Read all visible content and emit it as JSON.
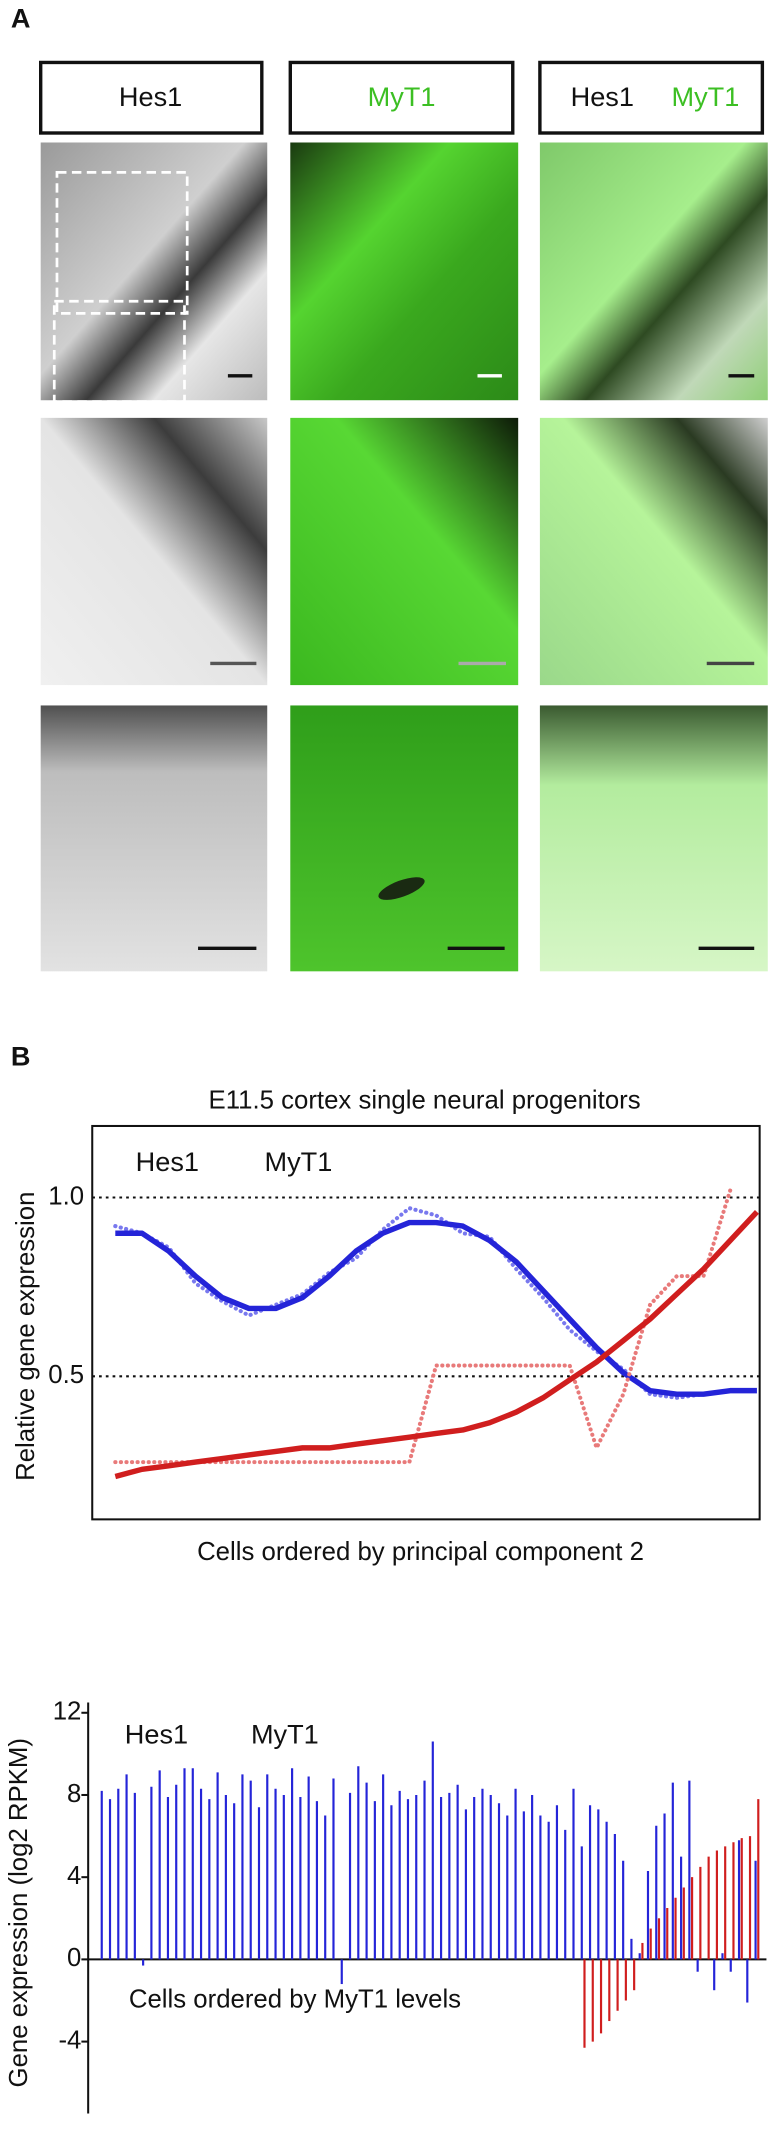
{
  "panel_a": {
    "label": "A",
    "headers": [
      {
        "parts": [
          "Hes1"
        ]
      },
      {
        "parts": [
          "MyT1"
        ]
      },
      {
        "parts": [
          "Hes1",
          "MyT1"
        ]
      }
    ]
  },
  "panel_b_label": "B",
  "chart_data": [
    {
      "type": "line",
      "title": "E11.5 cortex single neural progenitors",
      "y_label": "Relative gene expression",
      "x_label": "Cells ordered by principal component 2",
      "ylim": [
        0.1,
        1.2
      ],
      "yticks": [
        0.5,
        {
          "value": 1,
          "label": "1.0"
        }
      ],
      "grid": true,
      "series": [
        {
          "name": "Hes1",
          "color": "#2424d8",
          "raw_color": "#7878ee",
          "values": [
            0.92,
            0.9,
            0.86,
            0.76,
            0.71,
            0.67,
            0.7,
            0.73,
            0.79,
            0.83,
            0.91,
            0.97,
            0.95,
            0.9,
            0.89,
            0.8,
            0.72,
            0.63,
            0.57,
            0.52,
            0.45,
            0.44,
            0.45,
            0.46,
            0.46
          ],
          "fit": [
            0.9,
            0.9,
            0.85,
            0.78,
            0.72,
            0.69,
            0.69,
            0.72,
            0.78,
            0.85,
            0.9,
            0.93,
            0.93,
            0.92,
            0.88,
            0.82,
            0.74,
            0.66,
            0.58,
            0.51,
            0.46,
            0.45,
            0.45,
            0.46,
            0.46
          ]
        },
        {
          "name": "MyT1",
          "color": "#d01e1e",
          "raw_color": "#e87a7a",
          "values": [
            0.26,
            0.26,
            0.26,
            0.26,
            0.26,
            0.26,
            0.26,
            0.26,
            0.26,
            0.26,
            0.26,
            0.26,
            0.53,
            0.53,
            0.53,
            0.53,
            0.53,
            0.53,
            0.3,
            0.45,
            0.7,
            0.78,
            0.78,
            1.02,
            null
          ],
          "fit": [
            0.22,
            0.24,
            0.25,
            0.26,
            0.27,
            0.28,
            0.29,
            0.3,
            0.3,
            0.31,
            0.32,
            0.33,
            0.34,
            0.35,
            0.37,
            0.4,
            0.44,
            0.49,
            0.54,
            0.6,
            0.66,
            0.73,
            0.8,
            0.88,
            0.96
          ]
        }
      ]
    },
    {
      "type": "bar",
      "y_label": "Gene expression (log2 RPKM)",
      "x_label": "Cells ordered by MyT1 levels",
      "ylim": [
        -7.5,
        12.5
      ],
      "yticks": [
        -4,
        0,
        4,
        8,
        12
      ],
      "series": [
        {
          "name": "Hes1",
          "color": "#2424d8",
          "values": [
            8.2,
            7.8,
            8.3,
            9.0,
            8.1,
            -0.3,
            8.4,
            9.2,
            7.9,
            8.5,
            9.3,
            9.3,
            8.3,
            7.8,
            9.1,
            8.0,
            7.6,
            9.0,
            8.7,
            7.4,
            9.0,
            8.3,
            8.0,
            9.3,
            7.9,
            8.9,
            7.7,
            7.0,
            8.8,
            -1.2,
            8.1,
            9.4,
            8.6,
            7.7,
            9.0,
            7.5,
            8.2,
            7.8,
            8.0,
            8.7,
            10.6,
            7.9,
            8.1,
            8.5,
            7.3,
            7.9,
            8.3,
            8.0,
            7.6,
            7.0,
            8.3,
            7.2,
            8.0,
            7.0,
            6.7,
            7.5,
            6.3,
            8.3,
            5.5,
            7.5,
            7.3,
            6.7,
            6.1,
            4.8,
            1.0,
            0.3,
            4.3,
            6.5,
            7.1,
            8.6,
            5.0,
            8.7,
            -0.6,
            0.0,
            -1.5,
            0.3,
            -0.6,
            5.8,
            -2.1,
            4.8
          ]
        },
        {
          "name": "MyT1",
          "color": "#d01e1e",
          "values": [
            0,
            0,
            0,
            0,
            0,
            0,
            0,
            0,
            0,
            0,
            0,
            0,
            0,
            0,
            0,
            0,
            0,
            0,
            0,
            0,
            0,
            0,
            0,
            0,
            0,
            0,
            0,
            0,
            0,
            0,
            0,
            0,
            0,
            0,
            0,
            0,
            0,
            0,
            0,
            0,
            0,
            0,
            0,
            0,
            0,
            0,
            0,
            0,
            0,
            0,
            0,
            0,
            0,
            0,
            0,
            0,
            0,
            0,
            -4.3,
            -4.0,
            -3.6,
            -3.0,
            -2.5,
            -2.0,
            -1.5,
            0.8,
            1.5,
            2.0,
            2.5,
            3.0,
            3.5,
            4.0,
            4.5,
            5.0,
            5.3,
            5.5,
            5.7,
            5.9,
            6.0,
            7.8
          ]
        }
      ]
    }
  ]
}
